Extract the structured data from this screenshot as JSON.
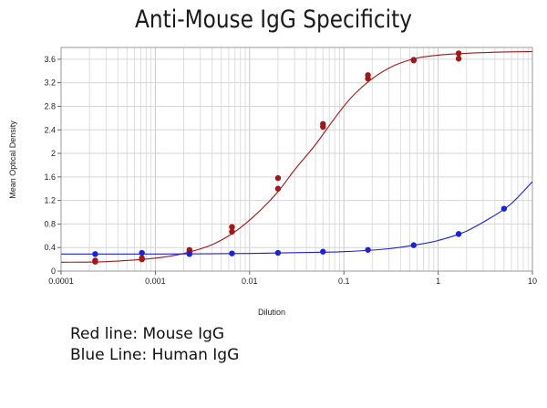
{
  "chart_data": {
    "type": "scatter",
    "title": "Anti-Mouse IgG Specificity",
    "xlabel": "Dilution",
    "ylabel": "Mean Optical Density",
    "x_scale": "log",
    "xlim": [
      0.0001,
      10
    ],
    "ylim": [
      0,
      3.8
    ],
    "grid": true,
    "x_ticks": [
      "0.0001",
      "0.001",
      "0.01",
      "0.1",
      "1",
      "10"
    ],
    "y_ticks": [
      "0",
      "0.4",
      "0.8",
      "1.2",
      "1.6",
      "2",
      "2.4",
      "2.8",
      "3.2",
      "3.6"
    ],
    "series": [
      {
        "color": "#a01818",
        "x": [
          0.00023,
          0.00023,
          0.00072,
          0.00072,
          0.0023,
          0.0023,
          0.0065,
          0.0065,
          0.02,
          0.02,
          0.06,
          0.06,
          0.18,
          0.18,
          0.55,
          0.55,
          1.65,
          1.65
        ],
        "y": [
          0.16,
          0.18,
          0.2,
          0.22,
          0.33,
          0.36,
          0.67,
          0.75,
          1.4,
          1.58,
          2.45,
          2.5,
          3.27,
          3.33,
          3.58,
          3.59,
          3.61,
          3.7
        ],
        "curve": {
          "x": [
            0.0001,
            0.0003,
            0.001,
            0.002,
            0.004,
            0.007,
            0.012,
            0.02,
            0.03,
            0.05,
            0.08,
            0.12,
            0.2,
            0.35,
            0.6,
            1,
            2,
            4,
            10
          ],
          "y": [
            0.15,
            0.16,
            0.22,
            0.3,
            0.45,
            0.67,
            0.98,
            1.35,
            1.72,
            2.15,
            2.6,
            2.95,
            3.27,
            3.5,
            3.62,
            3.67,
            3.7,
            3.72,
            3.73
          ]
        }
      },
      {
        "color": "#1b22d4",
        "x": [
          0.00023,
          0.00072,
          0.0023,
          0.0065,
          0.02,
          0.06,
          0.18,
          0.55,
          1.65,
          5
        ],
        "y": [
          0.29,
          0.31,
          0.29,
          0.3,
          0.31,
          0.33,
          0.36,
          0.44,
          0.63,
          1.06
        ],
        "curve": {
          "x": [
            0.0001,
            0.001,
            0.01,
            0.05,
            0.1,
            0.3,
            0.6,
            1,
            2,
            4,
            6,
            10
          ],
          "y": [
            0.29,
            0.29,
            0.3,
            0.32,
            0.33,
            0.38,
            0.45,
            0.52,
            0.68,
            0.95,
            1.15,
            1.52
          ]
        }
      }
    ]
  },
  "notes": {
    "line1": "Red line: Mouse IgG",
    "line2": "Blue Line: Human IgG"
  }
}
